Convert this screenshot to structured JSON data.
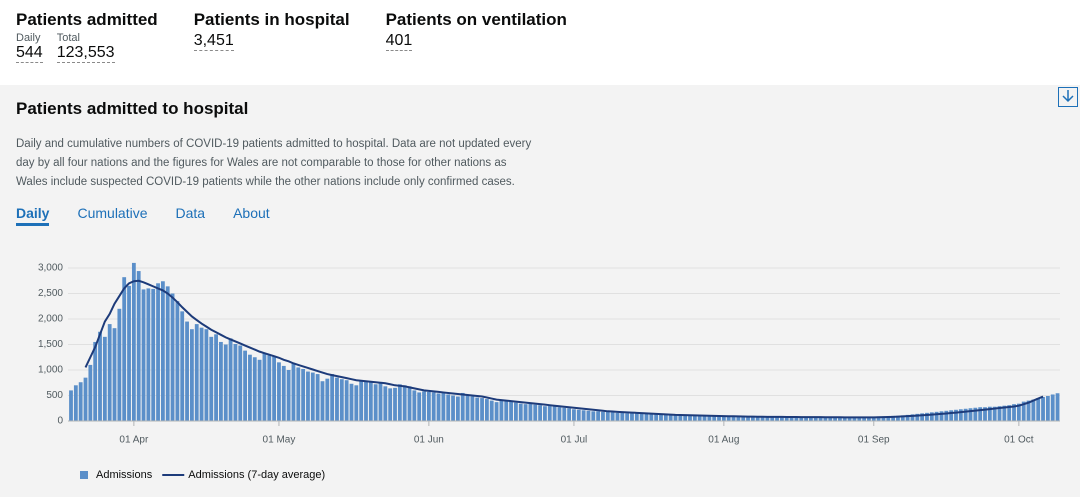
{
  "header": {
    "stats": [
      {
        "title": "Patients admitted",
        "items": [
          {
            "label": "Daily",
            "value": "544"
          },
          {
            "label": "Total",
            "value": "123,553"
          }
        ]
      },
      {
        "title": "Patients in hospital",
        "items": [
          {
            "value": "3,451"
          }
        ]
      },
      {
        "title": "Patients on ventilation",
        "items": [
          {
            "value": "401"
          }
        ]
      }
    ]
  },
  "card": {
    "title": "Patients admitted to hospital",
    "description": "Daily and cumulative numbers of COVID-19 patients admitted to hospital. Data are not updated every day by all four nations and the figures for Wales are not comparable to those for other nations as Wales include suspected COVID-19 patients while the other nations include only confirmed cases.",
    "tabs": [
      "Daily",
      "Cumulative",
      "Data",
      "About"
    ],
    "active_tab": 0
  },
  "chart_data": {
    "type": "bar",
    "grid": true,
    "legend": "bottom-left",
    "categories": [
      null,
      null,
      null,
      null,
      null,
      null,
      null,
      null,
      null,
      null,
      null,
      null,
      null,
      "01 Apr",
      null,
      null,
      null,
      null,
      null,
      null,
      null,
      null,
      null,
      null,
      null,
      null,
      null,
      null,
      null,
      null,
      null,
      null,
      null,
      null,
      null,
      null,
      null,
      null,
      null,
      null,
      null,
      null,
      null,
      "01 May",
      null,
      null,
      null,
      null,
      null,
      null,
      null,
      null,
      null,
      null,
      null,
      null,
      null,
      null,
      null,
      null,
      null,
      null,
      null,
      null,
      null,
      null,
      null,
      null,
      null,
      null,
      null,
      null,
      null,
      null,
      "01 Jun",
      null,
      null,
      null,
      null,
      null,
      null,
      null,
      null,
      null,
      null,
      null,
      null,
      null,
      null,
      null,
      null,
      null,
      null,
      null,
      null,
      null,
      null,
      null,
      null,
      null,
      null,
      null,
      null,
      null,
      "01 Jul",
      null,
      null,
      null,
      null,
      null,
      null,
      null,
      null,
      null,
      null,
      null,
      null,
      null,
      null,
      null,
      null,
      null,
      null,
      null,
      null,
      null,
      null,
      null,
      null,
      null,
      null,
      null,
      null,
      null,
      null,
      "01 Aug",
      null,
      null,
      null,
      null,
      null,
      null,
      null,
      null,
      null,
      null,
      null,
      null,
      null,
      null,
      null,
      null,
      null,
      null,
      null,
      null,
      null,
      null,
      null,
      null,
      null,
      null,
      null,
      null,
      null,
      null,
      "01 Sep",
      null,
      null,
      null,
      null,
      null,
      null,
      null,
      null,
      null,
      null,
      null,
      null,
      null,
      null,
      null,
      null,
      null,
      null,
      null,
      null,
      null,
      null,
      null,
      null,
      null,
      null,
      null,
      null,
      null,
      "01 Oct",
      null,
      null,
      null,
      null,
      null,
      null,
      null,
      null
    ],
    "series": [
      {
        "name": "Admissions",
        "type": "bar",
        "color": "#5b8fc9",
        "values": [
          600,
          700,
          760,
          850,
          1100,
          1550,
          1750,
          1650,
          1900,
          1820,
          2200,
          2820,
          2650,
          3100,
          2940,
          2580,
          2600,
          2590,
          2700,
          2740,
          2640,
          2500,
          2350,
          2150,
          1950,
          1800,
          1900,
          1830,
          1800,
          1650,
          1700,
          1550,
          1500,
          1620,
          1510,
          1480,
          1380,
          1300,
          1250,
          1200,
          1330,
          1290,
          1270,
          1150,
          1080,
          1000,
          1130,
          1050,
          1020,
          970,
          950,
          920,
          780,
          830,
          920,
          850,
          820,
          800,
          730,
          700,
          800,
          780,
          760,
          720,
          740,
          680,
          640,
          650,
          720,
          700,
          680,
          600,
          560,
          580,
          570,
          560,
          540,
          560,
          520,
          500,
          480,
          550,
          510,
          480,
          460,
          450,
          430,
          400,
          370,
          410,
          400,
          390,
          360,
          340,
          330,
          340,
          320,
          310,
          290,
          310,
          300,
          270,
          260,
          250,
          230,
          220,
          210,
          200,
          190,
          190,
          180,
          180,
          170,
          160,
          160,
          150,
          150,
          150,
          140,
          140,
          130,
          130,
          120,
          120,
          110,
          120,
          110,
          110,
          110,
          100,
          100,
          100,
          90,
          90,
          100,
          100,
          90,
          90,
          90,
          80,
          80,
          80,
          80,
          80,
          80,
          80,
          80,
          80,
          80,
          70,
          70,
          80,
          70,
          70,
          70,
          70,
          70,
          70,
          70,
          70,
          70,
          70,
          70,
          70,
          70,
          80,
          80,
          90,
          90,
          90,
          100,
          100,
          110,
          120,
          130,
          140,
          150,
          160,
          170,
          180,
          190,
          200,
          210,
          220,
          230,
          240,
          250,
          260,
          270,
          270,
          280,
          280,
          290,
          300,
          310,
          330,
          340,
          380,
          400,
          420,
          450,
          470,
          490,
          520,
          544
        ]
      },
      {
        "name": "Admissions (7-day average)",
        "type": "line",
        "color": "#1d3b7a",
        "values": [
          null,
          null,
          null,
          1050,
          1250,
          1450,
          1700,
          1950,
          2100,
          2300,
          2450,
          2600,
          2700,
          2740,
          2750,
          2720,
          2680,
          2640,
          2600,
          2560,
          2500,
          2420,
          2330,
          2230,
          2140,
          2050,
          1980,
          1910,
          1850,
          1790,
          1740,
          1690,
          1640,
          1600,
          1560,
          1520,
          1480,
          1440,
          1400,
          1360,
          1330,
          1300,
          1270,
          1240,
          1200,
          1170,
          1130,
          1100,
          1070,
          1040,
          1010,
          980,
          950,
          920,
          900,
          880,
          860,
          840,
          820,
          800,
          790,
          780,
          770,
          760,
          750,
          740,
          720,
          700,
          690,
          680,
          660,
          640,
          620,
          600,
          590,
          580,
          570,
          560,
          550,
          540,
          530,
          520,
          510,
          500,
          490,
          480,
          460,
          440,
          420,
          410,
          400,
          390,
          380,
          370,
          360,
          350,
          340,
          330,
          320,
          310,
          300,
          290,
          280,
          270,
          260,
          250,
          240,
          230,
          220,
          210,
          200,
          190,
          185,
          180,
          175,
          170,
          165,
          160,
          155,
          150,
          145,
          140,
          135,
          130,
          125,
          120,
          118,
          115,
          112,
          110,
          108,
          105,
          102,
          100,
          98,
          96,
          94,
          92,
          90,
          88,
          86,
          85,
          84,
          83,
          82,
          81,
          80,
          80,
          79,
          78,
          78,
          77,
          76,
          76,
          75,
          75,
          74,
          74,
          73,
          73,
          72,
          72,
          72,
          71,
          71,
          71,
          72,
          74,
          76,
          79,
          82,
          86,
          90,
          95,
          100,
          106,
          112,
          118,
          125,
          132,
          140,
          148,
          156,
          165,
          174,
          184,
          194,
          204,
          214,
          224,
          234,
          244,
          254,
          264,
          274,
          285,
          300,
          330,
          360,
          400,
          440,
          480,
          null,
          null,
          null
        ]
      }
    ],
    "ylim": [
      0,
      3000
    ],
    "yticks": [
      0,
      500,
      {
        "value": 1000,
        "label": "1,000"
      },
      {
        "value": 1500,
        "label": "1,500"
      },
      {
        "value": 2000,
        "label": "2,000"
      },
      {
        "value": 2500,
        "label": "2,500"
      },
      {
        "value": 3000,
        "label": "3,000"
      }
    ]
  }
}
